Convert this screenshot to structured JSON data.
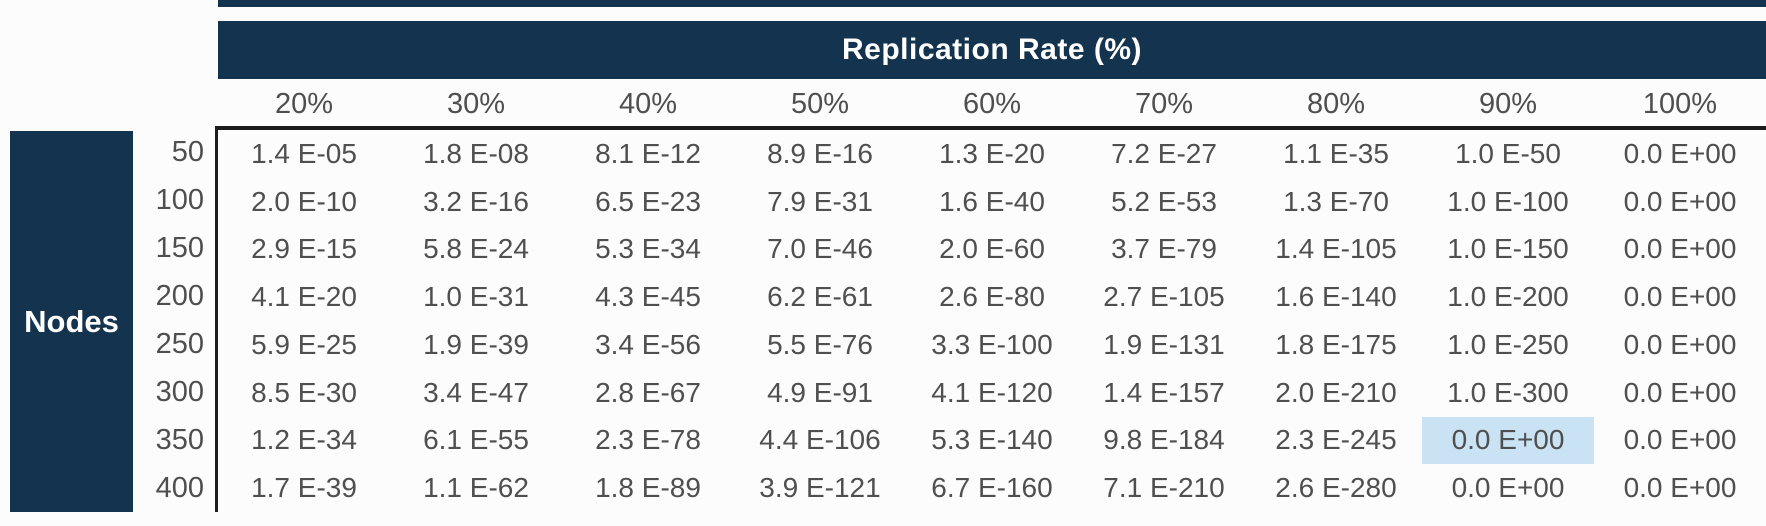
{
  "colors": {
    "navy": "#14334e",
    "text": "#4f4f4f",
    "highlight": "#c9e2f4",
    "border": "#1d1d1d",
    "background": "#fcfcfc"
  },
  "chart_data": {
    "type": "table",
    "title": "Replication Rate (%)",
    "row_header": "Nodes",
    "columns": [
      "20%",
      "30%",
      "40%",
      "50%",
      "60%",
      "70%",
      "80%",
      "90%",
      "100%"
    ],
    "rows": [
      {
        "label": "50",
        "values": [
          "1.4 E-05",
          "1.8 E-08",
          "8.1 E-12",
          "8.9 E-16",
          "1.3 E-20",
          "7.2 E-27",
          "1.1 E-35",
          "1.0 E-50",
          "0.0 E+00"
        ]
      },
      {
        "label": "100",
        "values": [
          "2.0 E-10",
          "3.2 E-16",
          "6.5 E-23",
          "7.9 E-31",
          "1.6 E-40",
          "5.2 E-53",
          "1.3 E-70",
          "1.0 E-100",
          "0.0 E+00"
        ]
      },
      {
        "label": "150",
        "values": [
          "2.9 E-15",
          "5.8 E-24",
          "5.3 E-34",
          "7.0 E-46",
          "2.0 E-60",
          "3.7 E-79",
          "1.4 E-105",
          "1.0 E-150",
          "0.0 E+00"
        ]
      },
      {
        "label": "200",
        "values": [
          "4.1 E-20",
          "1.0 E-31",
          "4.3 E-45",
          "6.2 E-61",
          "2.6 E-80",
          "2.7 E-105",
          "1.6 E-140",
          "1.0 E-200",
          "0.0 E+00"
        ]
      },
      {
        "label": "250",
        "values": [
          "5.9 E-25",
          "1.9 E-39",
          "3.4 E-56",
          "5.5 E-76",
          "3.3 E-100",
          "1.9 E-131",
          "1.8 E-175",
          "1.0 E-250",
          "0.0 E+00"
        ]
      },
      {
        "label": "300",
        "values": [
          "8.5 E-30",
          "3.4 E-47",
          "2.8 E-67",
          "4.9 E-91",
          "4.1 E-120",
          "1.4 E-157",
          "2.0 E-210",
          "1.0 E-300",
          "0.0 E+00"
        ]
      },
      {
        "label": "350",
        "values": [
          "1.2 E-34",
          "6.1 E-55",
          "2.3 E-78",
          "4.4 E-106",
          "5.3 E-140",
          "9.8 E-184",
          "2.3 E-245",
          "0.0 E+00",
          "0.0 E+00"
        ]
      },
      {
        "label": "400",
        "values": [
          "1.7 E-39",
          "1.1 E-62",
          "1.8 E-89",
          "3.9 E-121",
          "6.7 E-160",
          "7.1 E-210",
          "2.6 E-280",
          "0.0 E+00",
          "0.0 E+00"
        ]
      }
    ],
    "highlight": {
      "row": "350",
      "column": "90%"
    },
    "layout": {
      "grid": "off",
      "title_position": "top",
      "row_header_position": "left"
    }
  }
}
